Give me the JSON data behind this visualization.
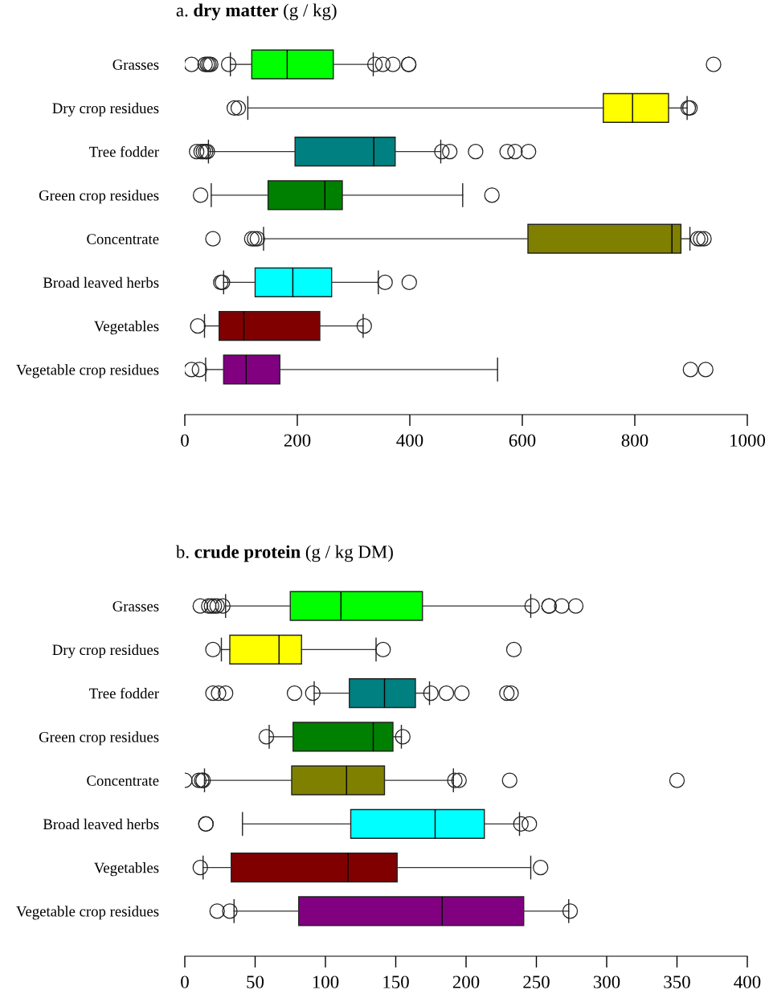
{
  "chart_data": [
    {
      "type": "box",
      "orientation": "horizontal",
      "title": "a. dry matter (g / kg)",
      "categories": [
        "Grasses",
        "Dry crop residues",
        "Tree fodder",
        "Green crop residues",
        "Concentrate",
        "Broad leaved herbs",
        "Vegetables",
        "Vegetable crop residues"
      ],
      "colors": [
        "#00ff00",
        "#ffff00",
        "#008080",
        "#008000",
        "#808000",
        "#00ffff",
        "#800000",
        "#800080"
      ],
      "boxes": [
        {
          "low": 81,
          "q1": 119,
          "median": 182,
          "q3": 264,
          "high": 335,
          "outliers": [
            12,
            36,
            40,
            43,
            46,
            78,
            338,
            352,
            370,
            398,
            398,
            940
          ]
        },
        {
          "low": 112,
          "q1": 744,
          "median": 796,
          "q3": 860,
          "high": 893,
          "outliers": [
            88,
            95,
            895,
            898
          ]
        },
        {
          "low": 42,
          "q1": 196,
          "median": 336,
          "q3": 374,
          "high": 455,
          "outliers": [
            21,
            29,
            33,
            37,
            40,
            457,
            471,
            517,
            573,
            587,
            611
          ]
        },
        {
          "low": 47,
          "q1": 148,
          "median": 249,
          "q3": 280,
          "high": 494,
          "outliers": [
            28,
            546
          ]
        },
        {
          "low": 140,
          "q1": 610,
          "median": 866,
          "q3": 882,
          "high": 898,
          "outliers": [
            50,
            119,
            124,
            129,
            912,
            917,
            923
          ]
        },
        {
          "low": 69,
          "q1": 125,
          "median": 192,
          "q3": 261,
          "high": 344,
          "outliers": [
            64,
            67,
            356,
            399
          ]
        },
        {
          "low": 35,
          "q1": 61,
          "median": 105,
          "q3": 240,
          "high": 317,
          "outliers": [
            23,
            319
          ]
        },
        {
          "low": 37,
          "q1": 69,
          "median": 109,
          "q3": 169,
          "high": 556,
          "outliers": [
            12,
            26,
            899,
            926
          ]
        }
      ],
      "xlim": [
        0,
        1000
      ],
      "xticks": [
        0,
        200,
        400,
        600,
        800,
        1000
      ]
    },
    {
      "type": "box",
      "orientation": "horizontal",
      "title": "b. crude protein (g / kg DM)",
      "categories": [
        "Grasses",
        "Dry crop residues",
        "Tree fodder",
        "Green crop residues",
        "Concentrate",
        "Broad leaved herbs",
        "Vegetables",
        "Vegetable crop residues"
      ],
      "colors": [
        "#00ff00",
        "#ffff00",
        "#008080",
        "#008000",
        "#808000",
        "#00ffff",
        "#800000",
        "#800080"
      ],
      "boxes": [
        {
          "low": 29,
          "q1": 75,
          "median": 111,
          "q3": 169,
          "high": 246,
          "outliers": [
            11,
            17,
            19,
            21,
            23,
            27,
            247,
            259,
            259,
            268,
            278
          ]
        },
        {
          "low": 26,
          "q1": 32,
          "median": 67,
          "q3": 83,
          "high": 136,
          "outliers": [
            20,
            141,
            234
          ]
        },
        {
          "low": 92,
          "q1": 117,
          "median": 142,
          "q3": 164,
          "high": 174,
          "outliers": [
            20,
            24,
            29,
            78,
            91,
            175,
            186,
            197,
            229,
            232
          ]
        },
        {
          "low": 60,
          "q1": 77,
          "median": 134,
          "q3": 148,
          "high": 154,
          "outliers": [
            58,
            155
          ]
        },
        {
          "low": 14,
          "q1": 76,
          "median": 115,
          "q3": 142,
          "high": 191,
          "outliers": [
            0,
            10,
            12,
            13,
            192,
            195,
            231,
            350
          ]
        },
        {
          "low": 41,
          "q1": 118,
          "median": 178,
          "q3": 213,
          "high": 238,
          "outliers": [
            15,
            15,
            239,
            245
          ]
        },
        {
          "low": 13,
          "q1": 33,
          "median": 116,
          "q3": 151,
          "high": 246,
          "outliers": [
            11,
            253
          ]
        },
        {
          "low": 35,
          "q1": 81,
          "median": 183,
          "q3": 241,
          "high": 273,
          "outliers": [
            23,
            32,
            274
          ]
        }
      ],
      "xlim": [
        0,
        400
      ],
      "xticks": [
        0,
        50,
        100,
        150,
        200,
        250,
        300,
        350,
        400
      ]
    }
  ]
}
